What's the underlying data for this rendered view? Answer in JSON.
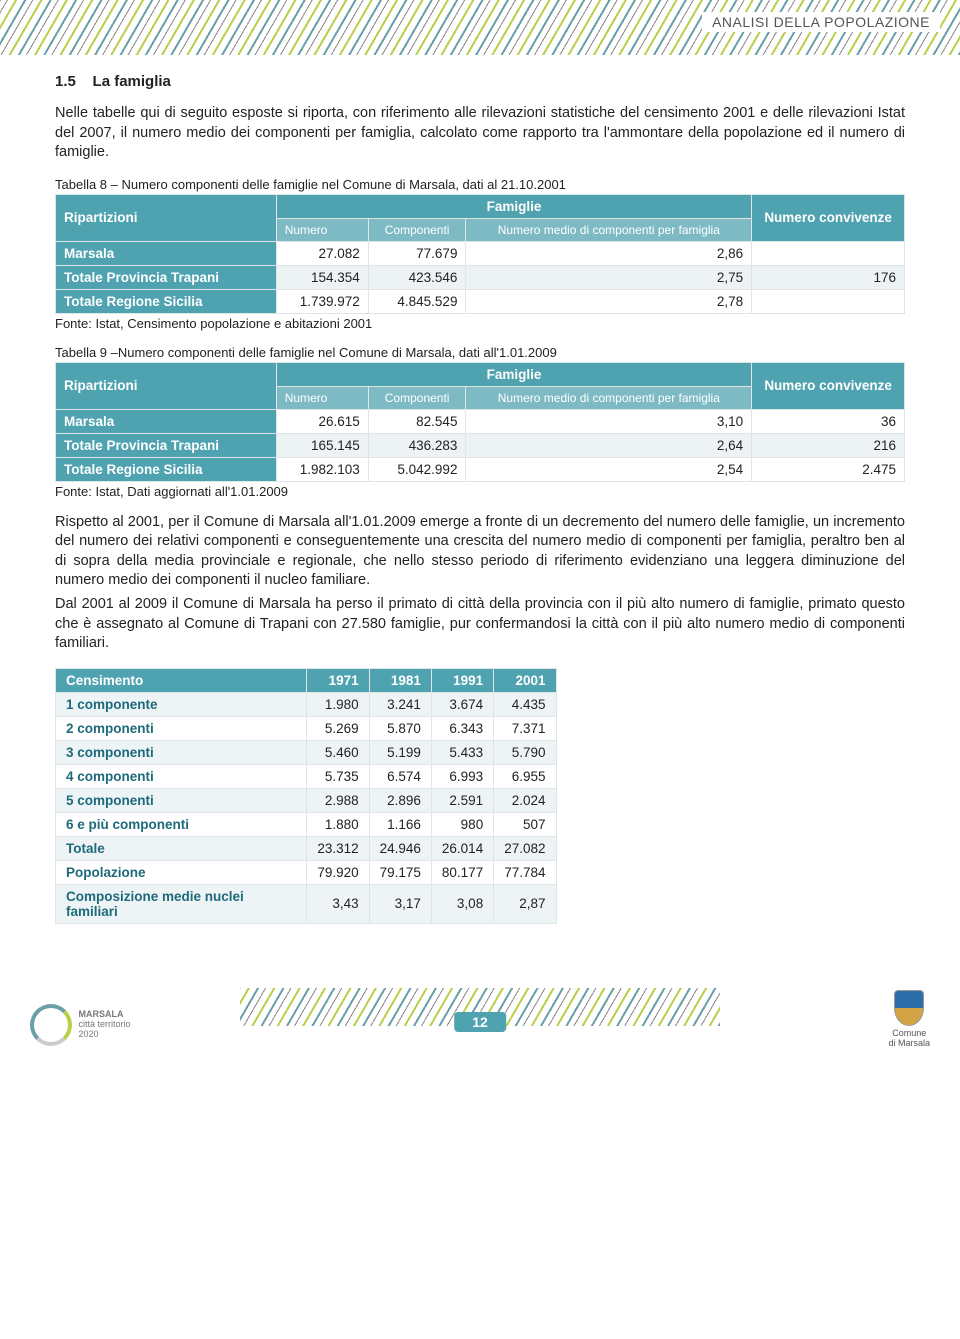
{
  "header": {
    "label": "ANALISI DELLA POPOLAZIONE"
  },
  "section": {
    "number": "1.5",
    "title": "La famiglia",
    "intro": "Nelle tabelle qui di seguito esposte si riporta, con riferimento alle rilevazioni statistiche del censimento 2001 e delle rilevazioni Istat del 2007, il numero medio dei componenti per famiglia, calcolato come rapporto tra l'ammontare della popolazione ed il numero di famiglie."
  },
  "table8": {
    "caption": "Tabella 8 – Numero componenti delle famiglie nel Comune di Marsala, dati al 21.10.2001",
    "headers": {
      "ripartizioni": "Ripartizioni",
      "famiglie": "Famiglie",
      "numero": "Numero",
      "componenti": "Componenti",
      "medio": "Numero medio di componenti per famiglia",
      "convivenze": "Numero convivenze"
    },
    "rows": [
      {
        "label": "Marsala",
        "numero": "27.082",
        "componenti": "77.679",
        "medio": "2,86",
        "conv": ""
      },
      {
        "label": "Totale Provincia Trapani",
        "numero": "154.354",
        "componenti": "423.546",
        "medio": "2,75",
        "conv": "176"
      },
      {
        "label": "Totale Regione Sicilia",
        "numero": "1.739.972",
        "componenti": "4.845.529",
        "medio": "2,78",
        "conv": ""
      }
    ],
    "source": "Fonte: Istat, Censimento popolazione e abitazioni 2001"
  },
  "table9": {
    "caption": "Tabella 9 –Numero componenti delle famiglie nel Comune di Marsala, dati all'1.01.2009",
    "headers": {
      "ripartizioni": "Ripartizioni",
      "famiglie": "Famiglie",
      "numero": "Numero",
      "componenti": "Componenti",
      "medio": "Numero medio di componenti per famiglia",
      "convivenze": "Numero convivenze"
    },
    "rows": [
      {
        "label": "Marsala",
        "numero": "26.615",
        "componenti": "82.545",
        "medio": "3,10",
        "conv": "36"
      },
      {
        "label": "Totale Provincia Trapani",
        "numero": "165.145",
        "componenti": "436.283",
        "medio": "2,64",
        "conv": "216"
      },
      {
        "label": "Totale Regione Sicilia",
        "numero": "1.982.103",
        "componenti": "5.042.992",
        "medio": "2,54",
        "conv": "2.475"
      }
    ],
    "source": "Fonte: Istat, Dati aggiornati  all'1.01.2009"
  },
  "para1": "Rispetto al 2001, per il Comune di Marsala all'1.01.2009 emerge a fronte di un decremento del numero delle famiglie, un incremento del numero dei relativi componenti e conseguentemente una crescita del numero medio di componenti per famiglia, peraltro ben al di sopra della media provinciale e regionale, che nello stesso periodo di riferimento evidenziano una leggera diminuzione del numero medio dei componenti il nucleo familiare.",
  "para2": "Dal 2001 al 2009 il Comune di Marsala ha perso il primato di città della provincia con il più alto numero di famiglie, primato questo che è assegnato al Comune di Trapani con 27.580 famiglie, pur confermandosi la città con il più alto numero medio di componenti familiari.",
  "tableCens": {
    "headers": [
      "Censimento",
      "1971",
      "1981",
      "1991",
      "2001"
    ],
    "rows": [
      [
        "1 componente",
        "1.980",
        "3.241",
        "3.674",
        "4.435"
      ],
      [
        "2 componenti",
        "5.269",
        "5.870",
        "6.343",
        "7.371"
      ],
      [
        "3 componenti",
        "5.460",
        "5.199",
        "5.433",
        "5.790"
      ],
      [
        "4 componenti",
        "5.735",
        "6.574",
        "6.993",
        "6.955"
      ],
      [
        "5 componenti",
        "2.988",
        "2.896",
        "2.591",
        "2.024"
      ],
      [
        "6 e più componenti",
        "1.880",
        "1.166",
        "980",
        "507"
      ],
      [
        "Totale",
        "23.312",
        "24.946",
        "26.014",
        "27.082"
      ],
      [
        "Popolazione",
        "79.920",
        "79.175",
        "80.177",
        "77.784"
      ],
      [
        "Composizione medie nuclei familiari",
        "3,43",
        "3,17",
        "3,08",
        "2,87"
      ]
    ]
  },
  "footer": {
    "page": "12",
    "leftLogo": {
      "l1": "MARSALA",
      "l2": "città territorio",
      "l3": "2020"
    },
    "rightLogo": {
      "l1": "Comune",
      "l2": "di Marsala"
    }
  },
  "colors": {
    "teal": "#4fa2b0",
    "tealLight": "#7dbac4",
    "rowAlt": "#eef4f5",
    "green": "#b8cf4a"
  }
}
